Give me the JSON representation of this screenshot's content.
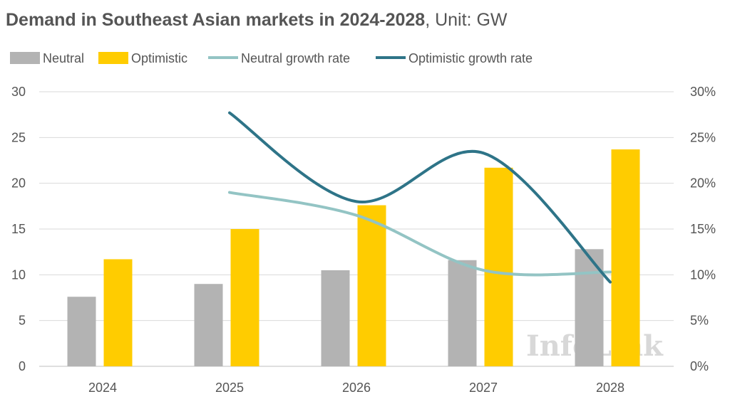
{
  "header": {
    "title": "Demand in Southeast Asian markets in 2024-2028",
    "unit": ", Unit: GW"
  },
  "watermark": "InfoLink",
  "colors": {
    "neutral_bar": "#b3b3b3",
    "optimistic_bar": "#ffcc00",
    "neutral_line": "#93c4c4",
    "optimistic_line": "#2e7488",
    "grid": "#d9d9d9",
    "text": "#555555"
  },
  "chart_data": {
    "type": "bar",
    "title": "Demand in Southeast Asian markets in 2024-2028",
    "categories": [
      "2024",
      "2025",
      "2026",
      "2027",
      "2028"
    ],
    "series": [
      {
        "name": "Neutral",
        "type": "bar",
        "axis": "left",
        "values": [
          7.6,
          9.0,
          10.5,
          11.6,
          12.8
        ]
      },
      {
        "name": "Optimistic",
        "type": "bar",
        "axis": "left",
        "values": [
          11.7,
          15.0,
          17.6,
          21.7,
          23.7
        ]
      },
      {
        "name": "Neutral growth rate",
        "type": "line",
        "axis": "right",
        "values": [
          null,
          0.19,
          0.165,
          0.105,
          0.103
        ]
      },
      {
        "name": "Optimistic growth rate",
        "type": "line",
        "axis": "right",
        "values": [
          null,
          0.277,
          0.18,
          0.233,
          0.092
        ]
      }
    ],
    "y_left": {
      "lim": [
        0,
        30
      ],
      "ticks": [
        "0",
        "5",
        "10",
        "15",
        "20",
        "25",
        "30"
      ]
    },
    "y_right": {
      "lim": [
        0,
        0.3
      ],
      "ticks": [
        "0%",
        "5%",
        "10%",
        "15%",
        "20%",
        "25%",
        "30%"
      ]
    },
    "grid": true,
    "legend": "top-left"
  }
}
